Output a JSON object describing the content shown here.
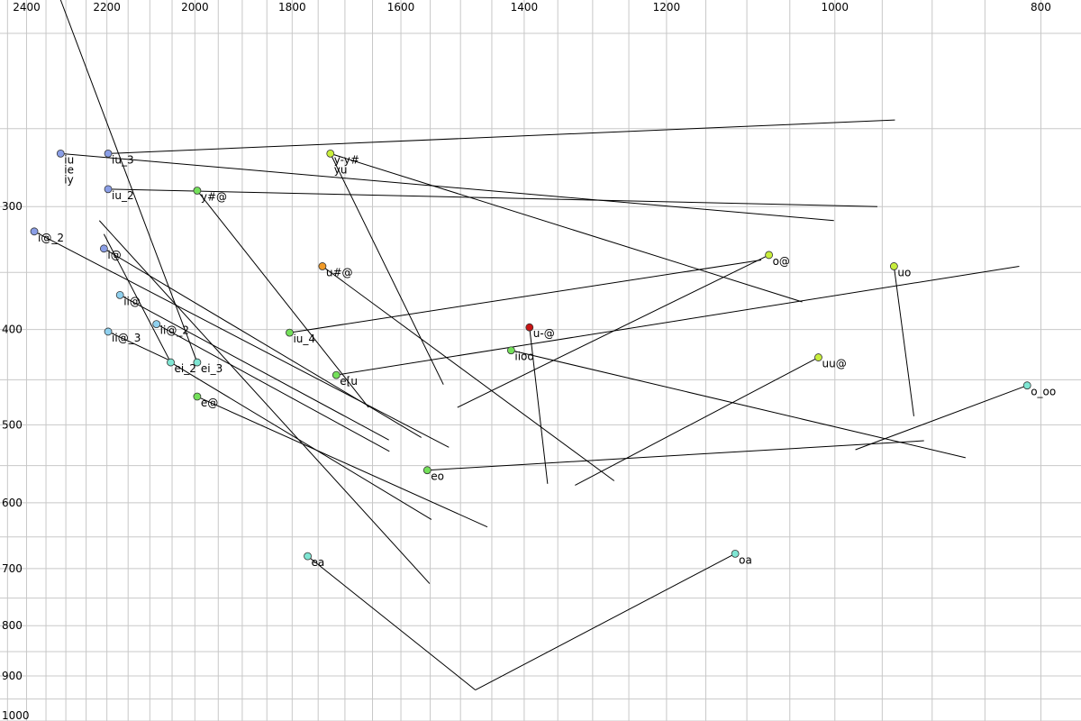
{
  "chart_data": {
    "type": "scatter",
    "title": "",
    "xlabel": "",
    "ylabel": "",
    "grid": true,
    "x_scale": "log",
    "y_scale": "log",
    "x_reversed": true,
    "xlim": [
      2470,
      766
    ],
    "ylim": [
      185,
      1000
    ],
    "x_ticks": [
      2400,
      2200,
      2000,
      1800,
      1600,
      1400,
      1200,
      1000,
      800
    ],
    "y_ticks": [
      300,
      400,
      500,
      600,
      700,
      800,
      900,
      1000
    ],
    "point_colors": {
      "blue": "#8a9ee6",
      "light_blue": "#8fd0ee",
      "cyan": "#7fe6d3",
      "green": "#74e05a",
      "yellow_green": "#c8ee3c",
      "orange": "#f09a28",
      "red": "#c81414"
    },
    "points": [
      {
        "label": "iu",
        "x": 2313,
        "y": 265,
        "color": "blue"
      },
      {
        "label": "ie",
        "x": 2313,
        "y": 265,
        "color": "blue"
      },
      {
        "label": "iy",
        "x": 2313,
        "y": 265,
        "color": "blue"
      },
      {
        "label": "iu_3",
        "x": 2197,
        "y": 265,
        "color": "blue"
      },
      {
        "label": "iu_2",
        "x": 2197,
        "y": 288,
        "color": "blue"
      },
      {
        "label": "i@_2",
        "x": 2380,
        "y": 318,
        "color": "blue"
      },
      {
        "label": "i@",
        "x": 2207,
        "y": 331,
        "color": "blue"
      },
      {
        "label": "ii@",
        "x": 2169,
        "y": 369,
        "color": "light_blue"
      },
      {
        "label": "ii@_2",
        "x": 2085,
        "y": 395,
        "color": "light_blue"
      },
      {
        "label": "ii@_3",
        "x": 2197,
        "y": 402,
        "color": "light_blue"
      },
      {
        "label": "ei_2",
        "x": 2053,
        "y": 432,
        "color": "cyan"
      },
      {
        "label": "ei_3",
        "x": 1995,
        "y": 432,
        "color": "cyan"
      },
      {
        "label": "e@",
        "x": 1995,
        "y": 468,
        "color": "green"
      },
      {
        "label": "y#@",
        "x": 1995,
        "y": 289,
        "color": "green"
      },
      {
        "label": "y-y#",
        "x": 1727,
        "y": 265,
        "color": "yellow_green"
      },
      {
        "label": "yu",
        "x": 1727,
        "y": 265,
        "color": "yellow_green"
      },
      {
        "label": "u#@",
        "x": 1742,
        "y": 345,
        "color": "orange"
      },
      {
        "label": "iu_4",
        "x": 1805,
        "y": 403,
        "color": "green"
      },
      {
        "label": "e[u",
        "x": 1716,
        "y": 445,
        "color": "green"
      },
      {
        "label": "u-@",
        "x": 1392,
        "y": 398,
        "color": "red"
      },
      {
        "label": "iioo",
        "x": 1420,
        "y": 420,
        "color": "green"
      },
      {
        "label": "eo",
        "x": 1555,
        "y": 556,
        "color": "green"
      },
      {
        "label": "o@",
        "x": 1074,
        "y": 336,
        "color": "yellow_green"
      },
      {
        "label": "uo",
        "x": 938,
        "y": 345,
        "color": "yellow_green"
      },
      {
        "label": "uu@",
        "x": 1018,
        "y": 427,
        "color": "yellow_green"
      },
      {
        "label": "o_oo",
        "x": 812,
        "y": 456,
        "color": "cyan"
      },
      {
        "label": "ea",
        "x": 1770,
        "y": 680,
        "color": "cyan"
      },
      {
        "label": "oa",
        "x": 1114,
        "y": 676,
        "color": "cyan"
      }
    ],
    "trajectories": [
      {
        "from": "iu_3",
        "to": [
          937,
          245
        ]
      },
      {
        "from": "iu",
        "to": [
          1001,
          310
        ]
      },
      {
        "from": "iu_2",
        "to": [
          955,
          300
        ]
      },
      {
        "from": "y-y#",
        "to": [
          1036,
          375
        ]
      },
      {
        "from": "yu",
        "to": [
          1528,
          455
        ]
      },
      {
        "from": "y#@",
        "to": [
          1657,
          480
        ]
      },
      {
        "from": "u#@",
        "to": [
          1270,
          570
        ]
      },
      {
        "from": "i@_2",
        "to": [
          1519,
          527
        ]
      },
      {
        "from": "i@",
        "to": [
          1565,
          515
        ]
      },
      {
        "from": "ii@",
        "to": [
          1621,
          518
        ]
      },
      {
        "from": "ii@_2",
        "to": [
          1620,
          532
        ]
      },
      {
        "from": "ii@_3",
        "to": [
          2046,
          432
        ]
      },
      {
        "from": "ei_2",
        "to": [
          2207,
          320
        ]
      },
      {
        "from": "ei_3",
        "to": [
          2313,
          185
        ]
      },
      {
        "from": "e@",
        "to": [
          1457,
          635
        ]
      },
      {
        "from": "iu_4",
        "to": [
          1083,
          340
        ]
      },
      {
        "from": "e[u",
        "to": [
          819,
          345
        ]
      },
      {
        "from": "iioo",
        "to": [
          868,
          540
        ]
      },
      {
        "from": "u-@",
        "to": [
          1365,
          574
        ]
      },
      {
        "from": "eo",
        "to": [
          908,
          519
        ]
      },
      {
        "from": "o@",
        "to": [
          1505,
          480
        ]
      },
      {
        "from": "uo",
        "to": [
          918,
          490
        ]
      },
      {
        "from": "uu@",
        "to": [
          1325,
          576
        ]
      },
      {
        "from": "o_oo",
        "to": [
          978,
          530
        ]
      },
      {
        "from": "ea",
        "to": [
          1476,
          930
        ]
      },
      {
        "from": "oa",
        "to": [
          1476,
          930
        ]
      },
      {
        "from_xy": [
          2053,
          432
        ],
        "to": [
          1548,
          624
        ]
      },
      {
        "from_xy": [
          2218,
          310
        ],
        "to": [
          1551,
          725
        ]
      }
    ]
  }
}
